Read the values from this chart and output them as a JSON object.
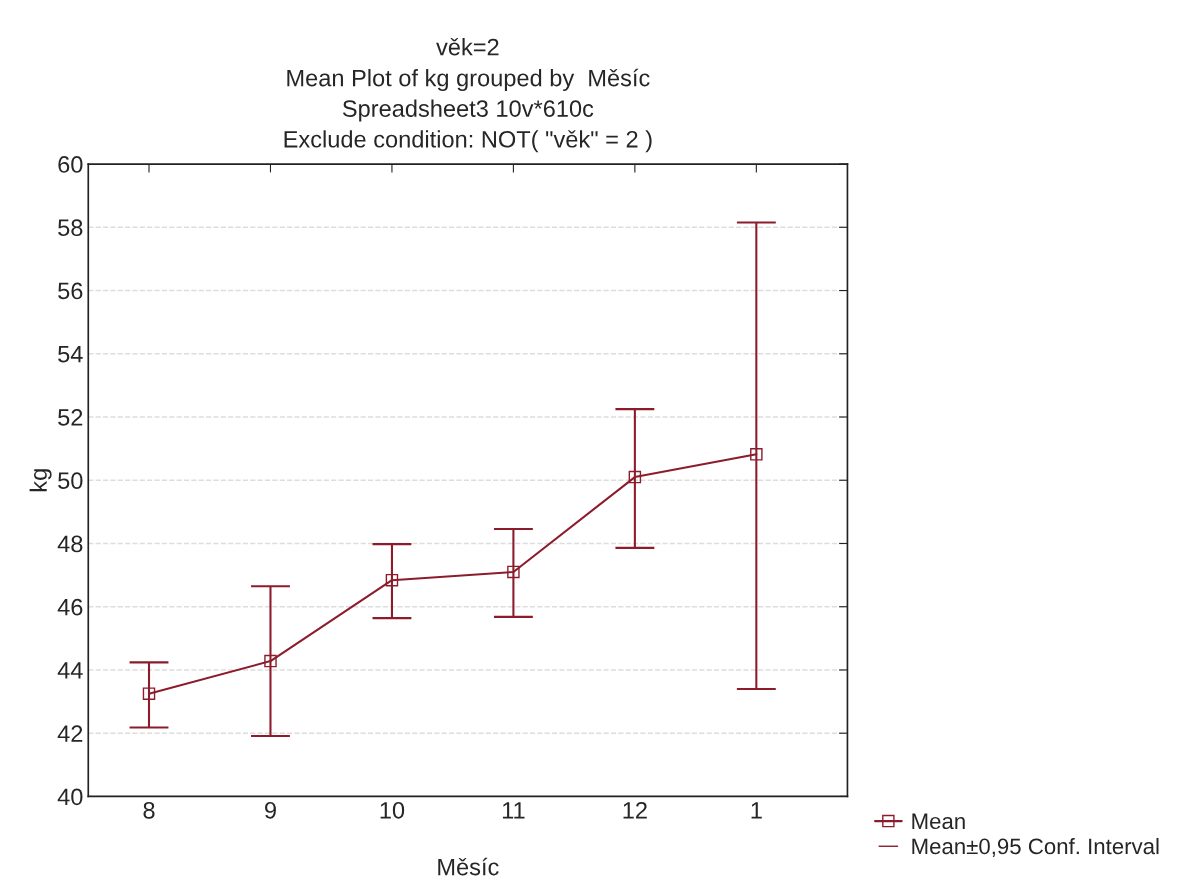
{
  "chart_data": {
    "type": "line",
    "title": "věk=2\nMean Plot of kg grouped by  Měsíc\nSpreadsheet3 10v*610c\nExclude condition: NOT( \"věk\" = 2 )",
    "xlabel": "Měsíc",
    "ylabel": "kg",
    "categories": [
      "8",
      "9",
      "10",
      "11",
      "12",
      "1"
    ],
    "series": [
      {
        "name": "Mean",
        "color": "#8c1c2c",
        "values": [
          43.25,
          44.28,
          46.84,
          47.1,
          50.1,
          50.82
        ],
        "errors": [
          [
            42.18,
            44.24
          ],
          [
            41.91,
            46.65
          ],
          [
            45.64,
            47.98
          ],
          [
            45.68,
            48.46
          ],
          [
            47.86,
            52.25
          ],
          [
            43.4,
            58.15
          ]
        ]
      }
    ],
    "annotations": [
      "Mean±0,95 Conf. Interval"
    ],
    "ylim": [
      40,
      60
    ],
    "yticks": [
      40,
      42,
      44,
      46,
      48,
      50,
      52,
      54,
      56,
      58,
      60
    ],
    "grid": "y",
    "legend": "bottom right",
    "marker": "square",
    "line_style": "solid"
  }
}
